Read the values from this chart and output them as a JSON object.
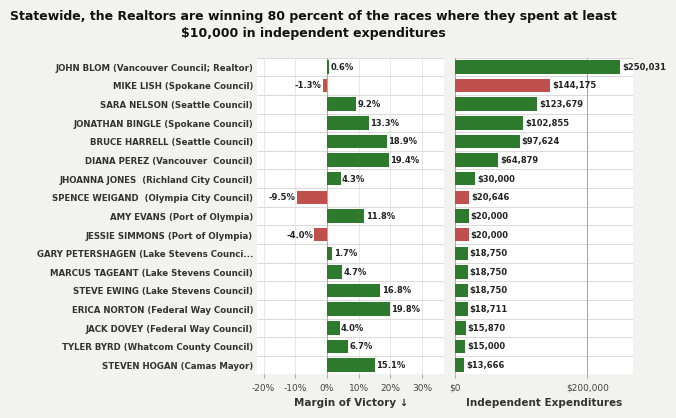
{
  "title": "Statewide, the Realtors are winning 80 percent of the races where they spent at least\n$10,000 in independent expenditures",
  "candidates": [
    "JOHN BLOM (Vancouver Council; Realtor)",
    "MIKE LISH (Spokane Council)",
    "SARA NELSON (Seattle Council)",
    "JONATHAN BINGLE (Spokane Council)",
    "BRUCE HARRELL (Seattle Council)",
    "DIANA PEREZ (Vancouver  Council)",
    "JHOANNA JONES  (Richland City Council)",
    "SPENCE WEIGAND  (Olympia City Council)",
    "AMY EVANS (Port of Olympia)",
    "JESSIE SIMMONS (Port of Olympia)",
    "GARY PETERSHAGEN (Lake Stevens Counci...",
    "MARCUS TAGEANT (Lake Stevens Council)",
    "STEVE EWING (Lake Stevens Council)",
    "ERICA NORTON (Federal Way Council)",
    "JACK DOVEY (Federal Way Council)",
    "TYLER BYRD (Whatcom County Council)",
    "STEVEN HOGAN (Camas Mayor)"
  ],
  "margins": [
    0.6,
    -1.3,
    9.2,
    13.3,
    18.9,
    19.4,
    4.3,
    -9.5,
    11.8,
    -4.0,
    1.7,
    4.7,
    16.8,
    19.8,
    4.0,
    6.7,
    15.1
  ],
  "expenditures": [
    250031,
    144175,
    123679,
    102855,
    97624,
    64879,
    30000,
    20646,
    20000,
    20000,
    18750,
    18750,
    18750,
    18711,
    15870,
    15000,
    13666
  ],
  "exp_labels": [
    "$250,031",
    "$144,175",
    "$123,679",
    "$102,855",
    "$97,624",
    "$64,879",
    "$30,000",
    "$20,646",
    "$20,000",
    "$20,000",
    "$18,750",
    "$18,750",
    "$18,750",
    "$18,711",
    "$15,870",
    "$15,000",
    "$13,666"
  ],
  "margin_labels": [
    "0.6%",
    "-1.3%",
    "9.2%",
    "13.3%",
    "18.9%",
    "19.4%",
    "4.3%",
    "-9.5%",
    "11.8%",
    "-4.0%",
    "1.7%",
    "4.7%",
    "16.8%",
    "19.8%",
    "4.0%",
    "6.7%",
    "15.1%"
  ],
  "win_colors": [
    "#2d7a2d",
    "#c0504d",
    "#2d7a2d",
    "#2d7a2d",
    "#2d7a2d",
    "#2d7a2d",
    "#2d7a2d",
    "#c0504d",
    "#2d7a2d",
    "#c0504d",
    "#2d7a2d",
    "#2d7a2d",
    "#2d7a2d",
    "#2d7a2d",
    "#2d7a2d",
    "#2d7a2d",
    "#2d7a2d"
  ],
  "exp_colors": [
    "#2d7a2d",
    "#c0504d",
    "#2d7a2d",
    "#2d7a2d",
    "#2d7a2d",
    "#2d7a2d",
    "#2d7a2d",
    "#c0504d",
    "#2d7a2d",
    "#c0504d",
    "#2d7a2d",
    "#2d7a2d",
    "#2d7a2d",
    "#2d7a2d",
    "#2d7a2d",
    "#2d7a2d",
    "#2d7a2d"
  ],
  "bg_color": "#f2f2ee",
  "plot_bg_color": "#ffffff",
  "xlabel_left": "Margin of Victory ↓",
  "xlabel_right": "Independent Expenditures",
  "xlim_left": [
    -22,
    37
  ],
  "xlim_right": [
    0,
    270000
  ],
  "xticks_left": [
    -20,
    -10,
    0,
    10,
    20,
    30
  ],
  "xtick_labels_left": [
    "-20%",
    "-10%",
    "0%",
    "10%",
    "20%",
    "30%"
  ],
  "xticks_right": [
    0,
    200000
  ],
  "xtick_labels_right": [
    "$0",
    "$200,000"
  ]
}
